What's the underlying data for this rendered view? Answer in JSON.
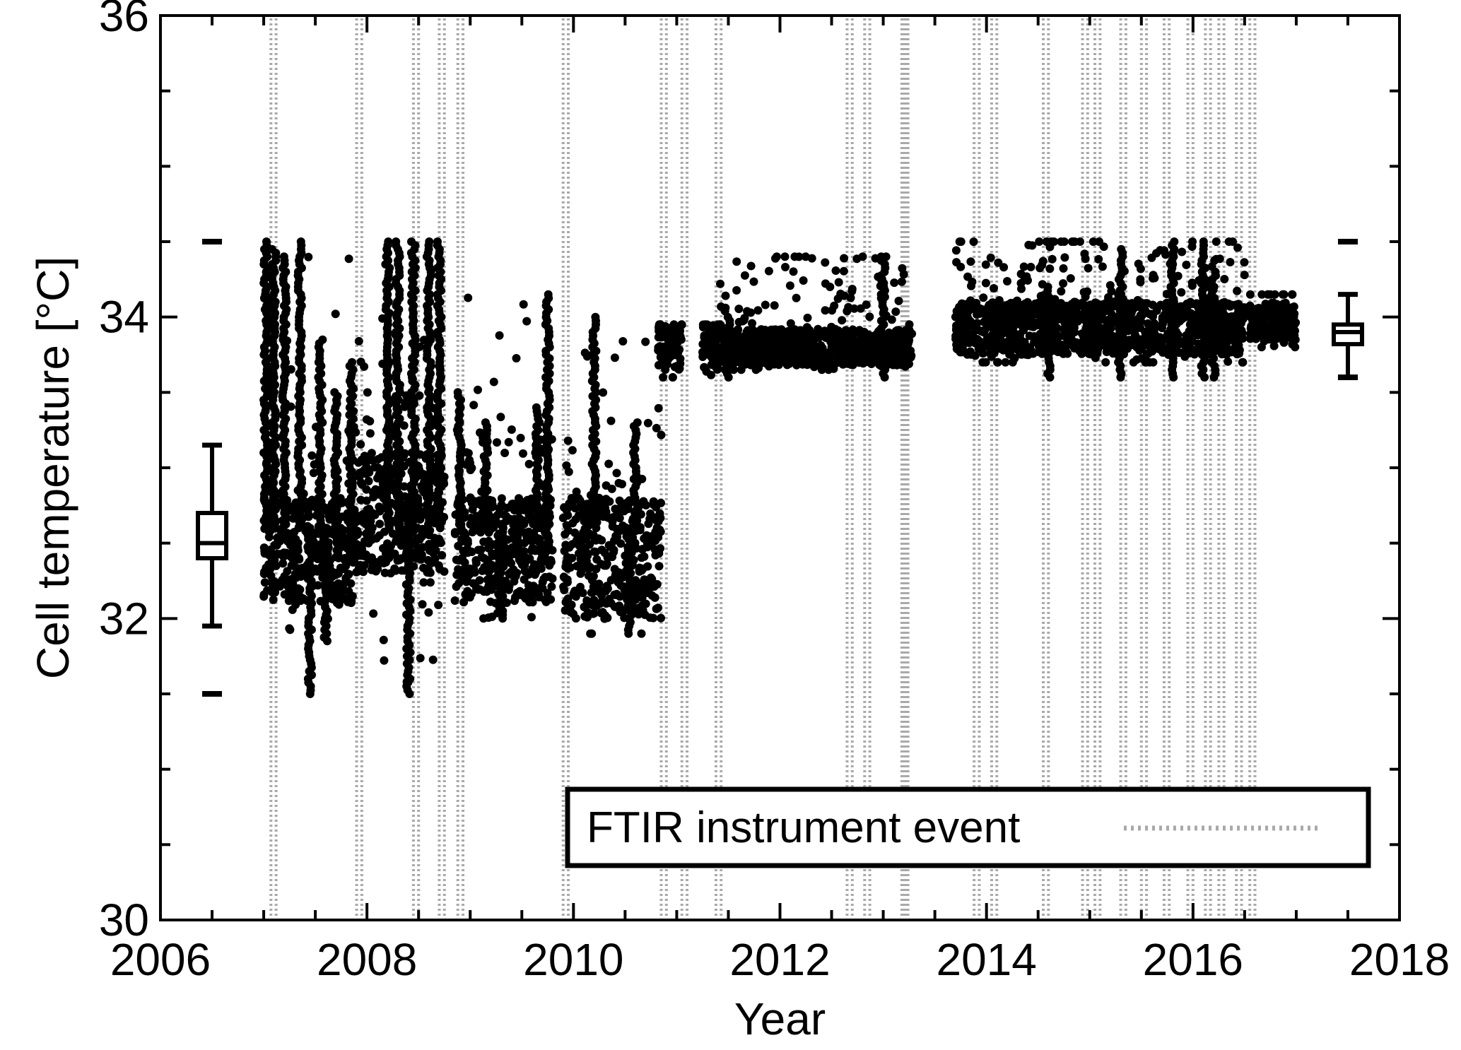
{
  "chart_data": {
    "type": "scatter",
    "title": "",
    "xlabel": "Year",
    "ylabel": "Cell temperature [°C]",
    "xlim": [
      2006,
      2018
    ],
    "ylim": [
      30,
      36
    ],
    "x_major_ticks": [
      2006,
      2008,
      2010,
      2012,
      2014,
      2016,
      2018
    ],
    "y_major_ticks": [
      30,
      32,
      34,
      36
    ],
    "x_tick_labels": [
      "2006",
      "2008",
      "2010",
      "2012",
      "2014",
      "2016",
      "2018"
    ],
    "y_tick_labels": [
      "30",
      "32",
      "34",
      "36"
    ],
    "x_minor_step": 0.5,
    "y_minor_step": 0.5,
    "grid": false,
    "legend": {
      "position": "bottom-right",
      "entries": [
        {
          "label": "FTIR instrument event",
          "style": "dotted vertical line",
          "color": "#a9a9a9"
        }
      ]
    },
    "instrument_events": [
      2007.07,
      2007.12,
      2007.9,
      2007.95,
      2008.45,
      2008.5,
      2008.7,
      2008.75,
      2008.88,
      2008.93,
      2009.9,
      2009.95,
      2010.85,
      2010.9,
      2011.05,
      2011.1,
      2011.38,
      2011.43,
      2012.65,
      2012.7,
      2012.82,
      2012.87,
      2013.18,
      2013.2,
      2013.22,
      2013.24,
      2013.88,
      2013.93,
      2014.05,
      2014.1,
      2014.55,
      2014.6,
      2014.93,
      2014.98,
      2015.05,
      2015.1,
      2015.3,
      2015.35,
      2015.5,
      2015.55,
      2015.72,
      2015.77,
      2015.95,
      2016.0,
      2016.12,
      2016.17,
      2016.25,
      2016.3,
      2016.42,
      2016.47,
      2016.55,
      2016.6
    ],
    "series": [
      {
        "marker": "filled circle",
        "color": "#000000",
        "segments": [
          {
            "x": [
              2007.0,
              2007.9
            ],
            "base": [
              32.1,
              32.8
            ],
            "envelope_max": 34.5,
            "envelope_min": 31.5
          },
          {
            "x": [
              2007.9,
              2008.75
            ],
            "base": [
              32.3,
              33.1
            ],
            "envelope_max": 34.5,
            "envelope_min": 31.5
          },
          {
            "x": [
              2008.85,
              2009.8
            ],
            "base": [
              32.1,
              32.8
            ],
            "envelope_max": 34.15,
            "envelope_min": 32.0
          },
          {
            "x": [
              2009.9,
              2010.85
            ],
            "base": [
              32.0,
              32.8
            ],
            "envelope_max": 34.0,
            "envelope_min": 31.9
          },
          {
            "x": [
              2010.82,
              2011.05
            ],
            "base": [
              33.65,
              33.95
            ],
            "envelope_max": 33.95,
            "envelope_min": 33.6
          },
          {
            "x": [
              2011.25,
              2011.42
            ],
            "base": [
              33.65,
              33.95
            ],
            "envelope_max": 33.95,
            "envelope_min": 33.6
          },
          {
            "x": [
              2011.42,
              2013.28
            ],
            "base": [
              33.68,
              33.92
            ],
            "envelope_max": 34.4,
            "envelope_min": 33.65
          },
          {
            "x": [
              2013.7,
              2016.5
            ],
            "base": [
              33.75,
              34.1
            ],
            "envelope_max": 34.5,
            "envelope_min": 33.7
          },
          {
            "x": [
              2016.55,
              2017.0
            ],
            "base": [
              33.85,
              34.1
            ],
            "envelope_max": 34.15,
            "envelope_min": 33.8
          }
        ],
        "spikes": [
          {
            "x": 2007.02,
            "y": 34.5
          },
          {
            "x": 2007.1,
            "y": 34.45
          },
          {
            "x": 2007.2,
            "y": 34.4
          },
          {
            "x": 2007.35,
            "y": 34.5
          },
          {
            "x": 2007.55,
            "y": 33.85
          },
          {
            "x": 2007.7,
            "y": 33.5
          },
          {
            "x": 2007.85,
            "y": 33.7
          },
          {
            "x": 2008.2,
            "y": 34.5
          },
          {
            "x": 2008.3,
            "y": 34.5
          },
          {
            "x": 2008.45,
            "y": 34.5
          },
          {
            "x": 2008.6,
            "y": 34.5
          },
          {
            "x": 2008.7,
            "y": 34.5
          },
          {
            "x": 2008.9,
            "y": 33.5
          },
          {
            "x": 2009.15,
            "y": 33.3
          },
          {
            "x": 2009.65,
            "y": 33.4
          },
          {
            "x": 2009.75,
            "y": 34.15
          },
          {
            "x": 2010.2,
            "y": 34.0
          },
          {
            "x": 2010.6,
            "y": 33.3
          },
          {
            "x": 2011.5,
            "y": 34.0
          },
          {
            "x": 2013.0,
            "y": 34.4
          },
          {
            "x": 2014.6,
            "y": 34.2
          },
          {
            "x": 2015.3,
            "y": 34.45
          },
          {
            "x": 2015.8,
            "y": 34.5
          },
          {
            "x": 2016.1,
            "y": 34.5
          },
          {
            "x": 2016.2,
            "y": 34.3
          },
          {
            "x": 2007.45,
            "y": 31.5
          },
          {
            "x": 2008.4,
            "y": 31.5
          },
          {
            "x": 2007.6,
            "y": 31.85
          },
          {
            "x": 2010.55,
            "y": 31.9
          },
          {
            "x": 2009.3,
            "y": 32.0
          }
        ]
      }
    ],
    "boxplots": [
      {
        "x": 2006.5,
        "min": 31.95,
        "q1": 32.4,
        "median": 32.5,
        "q3": 32.7,
        "max": 33.15,
        "outlier_low": 31.5,
        "outlier_high": 34.5
      },
      {
        "x": 2017.5,
        "min": 33.6,
        "q1": 33.82,
        "median": 33.9,
        "q3": 33.95,
        "max": 34.15,
        "outlier_low": 33.6,
        "outlier_high": 34.5
      }
    ]
  }
}
